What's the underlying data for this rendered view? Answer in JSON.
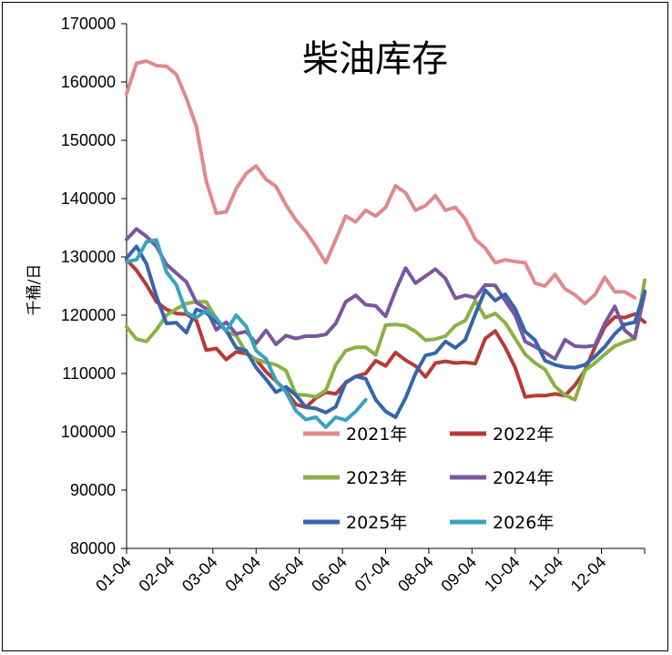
{
  "chart_data": {
    "type": "line",
    "title": "柴油库存",
    "xlabel": "",
    "ylabel": "千桶/日",
    "ylim": [
      80000,
      170000
    ],
    "yticks": [
      80000,
      90000,
      100000,
      110000,
      120000,
      130000,
      140000,
      150000,
      160000,
      170000
    ],
    "xticks": [
      "01-04",
      "02-04",
      "03-04",
      "04-04",
      "05-04",
      "06-04",
      "07-04",
      "08-04",
      "09-04",
      "10-04",
      "11-04",
      "12-04"
    ],
    "x_period_weeks": 52,
    "grid": false,
    "legend_position": "bottom-center",
    "series": [
      {
        "name": "2021年",
        "color": "#e0898c",
        "x": [
          0,
          1,
          2,
          3,
          4,
          5,
          6,
          7,
          8,
          9,
          10,
          11,
          12,
          13,
          14,
          15,
          16,
          17,
          18,
          19,
          20,
          21,
          22,
          23,
          24,
          25,
          26,
          27,
          28,
          29,
          30,
          31,
          32,
          33,
          34,
          35,
          36,
          37,
          38,
          39,
          40,
          41,
          42,
          43,
          44,
          45,
          46,
          47,
          48,
          49,
          50,
          51
        ],
        "values": [
          158000,
          163200,
          163600,
          162800,
          162700,
          161300,
          157200,
          152400,
          143000,
          137500,
          137700,
          141700,
          144300,
          145600,
          143300,
          142100,
          138900,
          136300,
          134300,
          131800,
          129000,
          133000,
          137000,
          136000,
          138000,
          137000,
          138500,
          142200,
          141000,
          138000,
          138800,
          140500,
          138000,
          138500,
          136500,
          133000,
          131500,
          129000,
          129500,
          129200,
          129000,
          125500,
          125000,
          127000,
          124500,
          123500,
          122000,
          123500,
          126500,
          124000,
          124000,
          123000
        ]
      },
      {
        "name": "2022年",
        "color": "#b83a36",
        "x": [
          0,
          1,
          2,
          3,
          4,
          5,
          6,
          7,
          8,
          9,
          10,
          11,
          12,
          13,
          14,
          15,
          16,
          17,
          18,
          19,
          20,
          21,
          22,
          23,
          24,
          25,
          26,
          27,
          28,
          29,
          30,
          31,
          32,
          33,
          34,
          35,
          36,
          37,
          38,
          39,
          40,
          41,
          42,
          43,
          44,
          45,
          46,
          47,
          48,
          49,
          50,
          51,
          52
        ],
        "values": [
          129500,
          127700,
          125200,
          122300,
          121000,
          120300,
          120200,
          119100,
          114000,
          114300,
          112400,
          113700,
          113400,
          112400,
          110300,
          108700,
          107000,
          104700,
          104200,
          105800,
          106800,
          106500,
          108400,
          109500,
          110000,
          112200,
          111300,
          113600,
          112300,
          111300,
          109400,
          111800,
          112100,
          111800,
          111900,
          111700,
          116000,
          117300,
          114500,
          111000,
          106000,
          106200,
          106200,
          106500,
          106200,
          108000,
          110500,
          114500,
          118000,
          119700,
          119600,
          120200,
          118800
        ]
      },
      {
        "name": "2023年",
        "color": "#8bb144",
        "x": [
          0,
          1,
          2,
          3,
          4,
          5,
          6,
          7,
          8,
          9,
          10,
          11,
          12,
          13,
          14,
          15,
          16,
          17,
          18,
          19,
          20,
          21,
          22,
          23,
          24,
          25,
          26,
          27,
          28,
          29,
          30,
          31,
          32,
          33,
          34,
          35,
          36,
          37,
          38,
          39,
          40,
          41,
          42,
          43,
          44,
          45,
          46,
          47,
          48,
          49,
          50,
          51,
          52
        ],
        "values": [
          118000,
          115900,
          115500,
          117500,
          120000,
          121100,
          122000,
          122300,
          122300,
          119400,
          117200,
          116500,
          113600,
          112400,
          111900,
          111500,
          110500,
          106400,
          106300,
          106000,
          107100,
          111500,
          113900,
          114500,
          114500,
          113200,
          118300,
          118400,
          118200,
          117200,
          115700,
          115900,
          116400,
          118200,
          119100,
          122500,
          119600,
          120300,
          118700,
          116000,
          113300,
          111800,
          110700,
          107800,
          106300,
          105500,
          110500,
          111800,
          113300,
          114700,
          115400,
          116000,
          126000
        ]
      },
      {
        "name": "2024年",
        "color": "#7b56a0",
        "x": [
          0,
          1,
          2,
          3,
          4,
          5,
          6,
          7,
          8,
          9,
          10,
          11,
          12,
          13,
          14,
          15,
          16,
          17,
          18,
          19,
          20,
          21,
          22,
          23,
          24,
          25,
          26,
          27,
          28,
          29,
          30,
          31,
          32,
          33,
          34,
          35,
          36,
          37,
          38,
          39,
          40,
          41,
          42,
          43,
          44,
          45,
          46,
          47,
          48,
          49,
          50,
          51,
          52
        ],
        "values": [
          133000,
          134800,
          133500,
          131800,
          128700,
          127200,
          125700,
          122200,
          121100,
          117500,
          118800,
          116800,
          117200,
          115200,
          117400,
          115000,
          116500,
          116000,
          116400,
          116400,
          116700,
          118600,
          122300,
          123400,
          121800,
          121600,
          119800,
          124200,
          128100,
          125500,
          126700,
          127900,
          126300,
          122900,
          123400,
          123000,
          125200,
          125100,
          122500,
          120000,
          115500,
          114600,
          113600,
          112500,
          115800,
          114700,
          114600,
          114800,
          118600,
          121500,
          117400,
          116000,
          123800
        ]
      },
      {
        "name": "2025年",
        "color": "#3565ad",
        "x": [
          0,
          1,
          2,
          3,
          4,
          5,
          6,
          7,
          8,
          9,
          10,
          11,
          12,
          13,
          14,
          15,
          16,
          17,
          18,
          19,
          20,
          21,
          22,
          23,
          24,
          25,
          26,
          27,
          28,
          29,
          30,
          31,
          32,
          33,
          34,
          35,
          36,
          37,
          38,
          39,
          40,
          41,
          42,
          43,
          44,
          45,
          46,
          47,
          48,
          49,
          50,
          51,
          52
        ],
        "values": [
          129800,
          131800,
          128800,
          123200,
          118600,
          118700,
          117000,
          121000,
          120400,
          118900,
          117400,
          114400,
          113900,
          111000,
          109000,
          106800,
          107700,
          106300,
          104200,
          104000,
          103300,
          104300,
          108500,
          109500,
          109100,
          105500,
          103500,
          102500,
          105800,
          110000,
          113100,
          113500,
          115500,
          114400,
          115800,
          120200,
          124300,
          122500,
          123600,
          121100,
          117200,
          115700,
          112200,
          111500,
          111100,
          111000,
          111500,
          112900,
          114600,
          116800,
          118400,
          118800,
          124100
        ]
      },
      {
        "name": "2026年",
        "color": "#3aa3bd",
        "x": [
          0,
          1,
          2,
          3,
          4,
          5,
          6,
          7,
          8,
          9,
          10,
          11,
          12,
          13,
          14,
          15,
          16,
          17,
          18,
          19,
          20,
          21,
          22,
          23,
          24
        ],
        "values": [
          129200,
          129500,
          132600,
          132900,
          127400,
          125200,
          120400,
          119600,
          120800,
          119500,
          117300,
          120000,
          118100,
          113900,
          112500,
          108800,
          106800,
          103600,
          102100,
          102500,
          100800,
          102500,
          102000,
          103500,
          105500
        ]
      }
    ]
  }
}
